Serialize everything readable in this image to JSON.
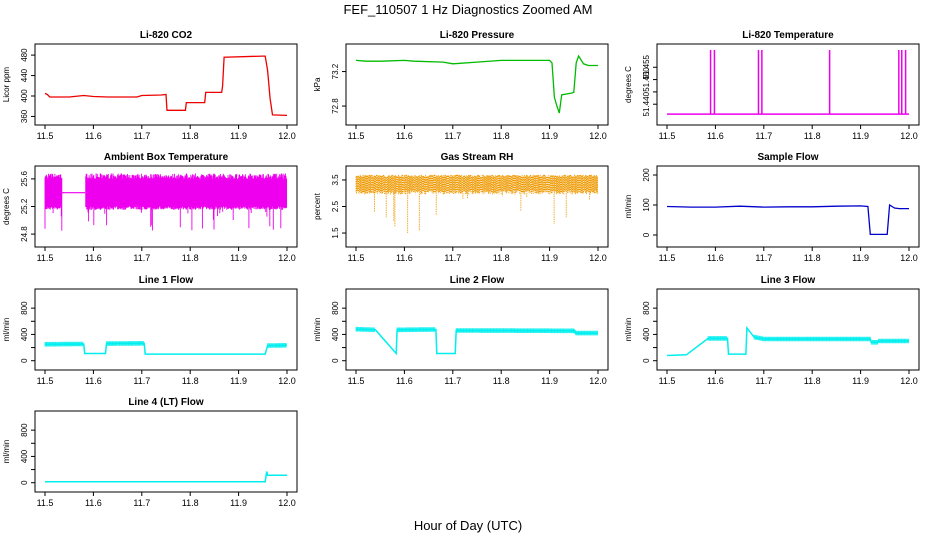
{
  "page": {
    "title": "FEF_110507  1 Hz Diagnostics Zoomed AM",
    "xlabel": "Hour of Day (UTC)"
  },
  "chart_data": [
    {
      "id": "co2",
      "type": "line",
      "title": "Li-820 CO2",
      "ylabel": "Licor ppm",
      "xlim": [
        11.5,
        12.0
      ],
      "ylim": [
        355,
        490
      ],
      "yticks": [
        360,
        400,
        440,
        480
      ],
      "xticks": [
        11.5,
        11.6,
        11.7,
        11.8,
        11.9,
        12.0
      ],
      "color": "#ee0000",
      "x": [
        11.5,
        11.505,
        11.51,
        11.55,
        11.58,
        11.6,
        11.63,
        11.69,
        11.7,
        11.74,
        11.75,
        11.752,
        11.79,
        11.792,
        11.83,
        11.832,
        11.865,
        11.867,
        11.87,
        11.95,
        11.955,
        11.96,
        11.965,
        11.97,
        12.0
      ],
      "y": [
        405,
        403,
        398,
        398,
        401,
        399,
        398,
        398,
        401,
        402,
        403,
        372,
        372,
        387,
        387,
        407,
        407,
        420,
        476,
        478,
        478,
        450,
        395,
        363,
        362
      ]
    },
    {
      "id": "pressure",
      "type": "line",
      "title": "Li-820 Pressure",
      "ylabel": "kPa",
      "xlim": [
        11.5,
        12.0
      ],
      "ylim": [
        72.65,
        73.45
      ],
      "yticks": [
        72.8,
        73.2
      ],
      "xticks": [
        11.5,
        11.6,
        11.7,
        11.8,
        11.9,
        12.0
      ],
      "color": "#00bb00",
      "x": [
        11.5,
        11.52,
        11.55,
        11.6,
        11.62,
        11.68,
        11.7,
        11.75,
        11.8,
        11.85,
        11.9,
        11.905,
        11.91,
        11.915,
        11.92,
        11.925,
        11.945,
        11.95,
        11.955,
        11.96,
        11.97,
        11.98,
        12.0
      ],
      "y": [
        73.33,
        73.32,
        73.32,
        73.33,
        73.32,
        73.31,
        73.29,
        73.31,
        73.33,
        73.33,
        73.33,
        73.3,
        72.9,
        72.8,
        72.72,
        72.93,
        72.95,
        72.96,
        73.3,
        73.38,
        73.29,
        73.27,
        73.27
      ]
    },
    {
      "id": "temperature",
      "type": "line",
      "title": "Li-820 Temperature",
      "ylabel": "degrees C",
      "xlim": [
        11.5,
        12.0
      ],
      "ylim": [
        51.434,
        51.462
      ],
      "yticks": [
        51.44,
        51.445,
        51.45,
        51.455
      ],
      "ytick_labels": [
        "51.440",
        "",
        "51.450",
        "51.455"
      ],
      "xticks": [
        11.5,
        11.6,
        11.7,
        11.8,
        11.9,
        12.0
      ],
      "color": "#ee00ee",
      "baseline": 51.436,
      "spikes": [
        11.59,
        11.598,
        11.689,
        11.696,
        11.836,
        11.979,
        11.985,
        11.993
      ],
      "spike_top": 51.462
    },
    {
      "id": "ambient_box",
      "type": "line",
      "title": "Ambient Box Temperature",
      "ylabel": "degrees C",
      "xlim": [
        11.5,
        12.0
      ],
      "ylim": [
        24.7,
        25.7
      ],
      "yticks": [
        24.8,
        25.2,
        25.6
      ],
      "ytick_labels": [
        "24.8",
        "25.2",
        "25.6"
      ],
      "xticks": [
        11.5,
        11.6,
        11.7,
        11.8,
        11.9,
        12.0
      ],
      "color": "#ee00ee",
      "band": [
        25.2,
        25.6
      ],
      "baseline": 25.4
    },
    {
      "id": "gas_rh",
      "type": "line",
      "title": "Gas Stream RH",
      "ylabel": "percent",
      "xlim": [
        11.5,
        12.0
      ],
      "ylim": [
        1.2,
        3.8
      ],
      "yticks": [
        1.5,
        2.5,
        3.5
      ],
      "xticks": [
        11.5,
        11.6,
        11.7,
        11.8,
        11.9,
        12.0
      ],
      "color": "#ee9900",
      "band": [
        3.1,
        3.6
      ]
    },
    {
      "id": "sample_flow",
      "type": "line",
      "title": "Sample Flow",
      "ylabel": "ml/min",
      "xlim": [
        11.5,
        12.0
      ],
      "ylim": [
        -20,
        210
      ],
      "yticks": [
        0,
        100,
        200
      ],
      "xticks": [
        11.5,
        11.6,
        11.7,
        11.8,
        11.9,
        12.0
      ],
      "color": "#0000cc",
      "x": [
        11.5,
        11.55,
        11.6,
        11.65,
        11.7,
        11.75,
        11.8,
        11.85,
        11.9,
        11.915,
        11.92,
        11.955,
        11.96,
        11.97,
        11.98,
        12.0
      ],
      "y": [
        95,
        93,
        93,
        96,
        93,
        94,
        94,
        96,
        97,
        95,
        2,
        2,
        100,
        90,
        88,
        88
      ]
    },
    {
      "id": "line1",
      "type": "line",
      "title": "Line 1 Flow",
      "ylabel": "ml/min",
      "xlim": [
        11.5,
        12.0
      ],
      "ylim": [
        -50,
        1000
      ],
      "yticks": [
        0,
        200,
        400,
        600,
        800
      ],
      "ytick_labels": [
        "0",
        "",
        "400",
        "",
        "800"
      ],
      "xticks": [
        11.5,
        11.6,
        11.7,
        11.8,
        11.9,
        12.0
      ],
      "color": "#00eeee",
      "x": [
        11.5,
        11.58,
        11.582,
        11.625,
        11.627,
        11.705,
        11.707,
        11.955,
        11.96,
        12.0
      ],
      "y": [
        250,
        255,
        110,
        110,
        260,
        265,
        100,
        100,
        230,
        235
      ]
    },
    {
      "id": "line2",
      "type": "line",
      "title": "Line 2 Flow",
      "ylabel": "ml/min",
      "xlim": [
        11.5,
        12.0
      ],
      "ylim": [
        -50,
        1000
      ],
      "yticks": [
        0,
        200,
        400,
        600,
        800
      ],
      "ytick_labels": [
        "0",
        "",
        "400",
        "",
        "800"
      ],
      "xticks": [
        11.5,
        11.6,
        11.7,
        11.8,
        11.9,
        12.0
      ],
      "color": "#00eeee",
      "x": [
        11.5,
        11.54,
        11.583,
        11.585,
        11.665,
        11.667,
        11.705,
        11.707,
        11.95,
        11.955,
        12.0
      ],
      "y": [
        480,
        470,
        110,
        470,
        475,
        110,
        110,
        460,
        455,
        420,
        420
      ]
    },
    {
      "id": "line3",
      "type": "line",
      "title": "Line 3 Flow",
      "ylabel": "ml/min",
      "xlim": [
        11.5,
        12.0
      ],
      "ylim": [
        -50,
        1000
      ],
      "yticks": [
        0,
        200,
        400,
        600,
        800
      ],
      "ytick_labels": [
        "0",
        "",
        "400",
        "",
        "800"
      ],
      "xticks": [
        11.5,
        11.6,
        11.7,
        11.8,
        11.9,
        12.0
      ],
      "color": "#00eeee",
      "x": [
        11.5,
        11.54,
        11.585,
        11.625,
        11.627,
        11.663,
        11.665,
        11.68,
        11.7,
        11.92,
        11.922,
        11.935,
        11.937,
        12.0
      ],
      "y": [
        80,
        90,
        340,
        340,
        100,
        100,
        500,
        360,
        330,
        330,
        280,
        280,
        300,
        300
      ]
    },
    {
      "id": "line4",
      "type": "line",
      "title": "Line 4 (LT) Flow",
      "ylabel": "ml/min",
      "xlim": [
        11.5,
        12.0
      ],
      "ylim": [
        -50,
        1000
      ],
      "yticks": [
        0,
        200,
        400,
        600,
        800
      ],
      "ytick_labels": [
        "0",
        "",
        "400",
        "",
        "800"
      ],
      "xticks": [
        11.5,
        11.6,
        11.7,
        11.8,
        11.9,
        12.0
      ],
      "color": "#00eeee",
      "x": [
        11.5,
        11.955,
        11.958,
        11.96,
        12.0
      ],
      "y": [
        15,
        15,
        170,
        115,
        115
      ]
    }
  ]
}
